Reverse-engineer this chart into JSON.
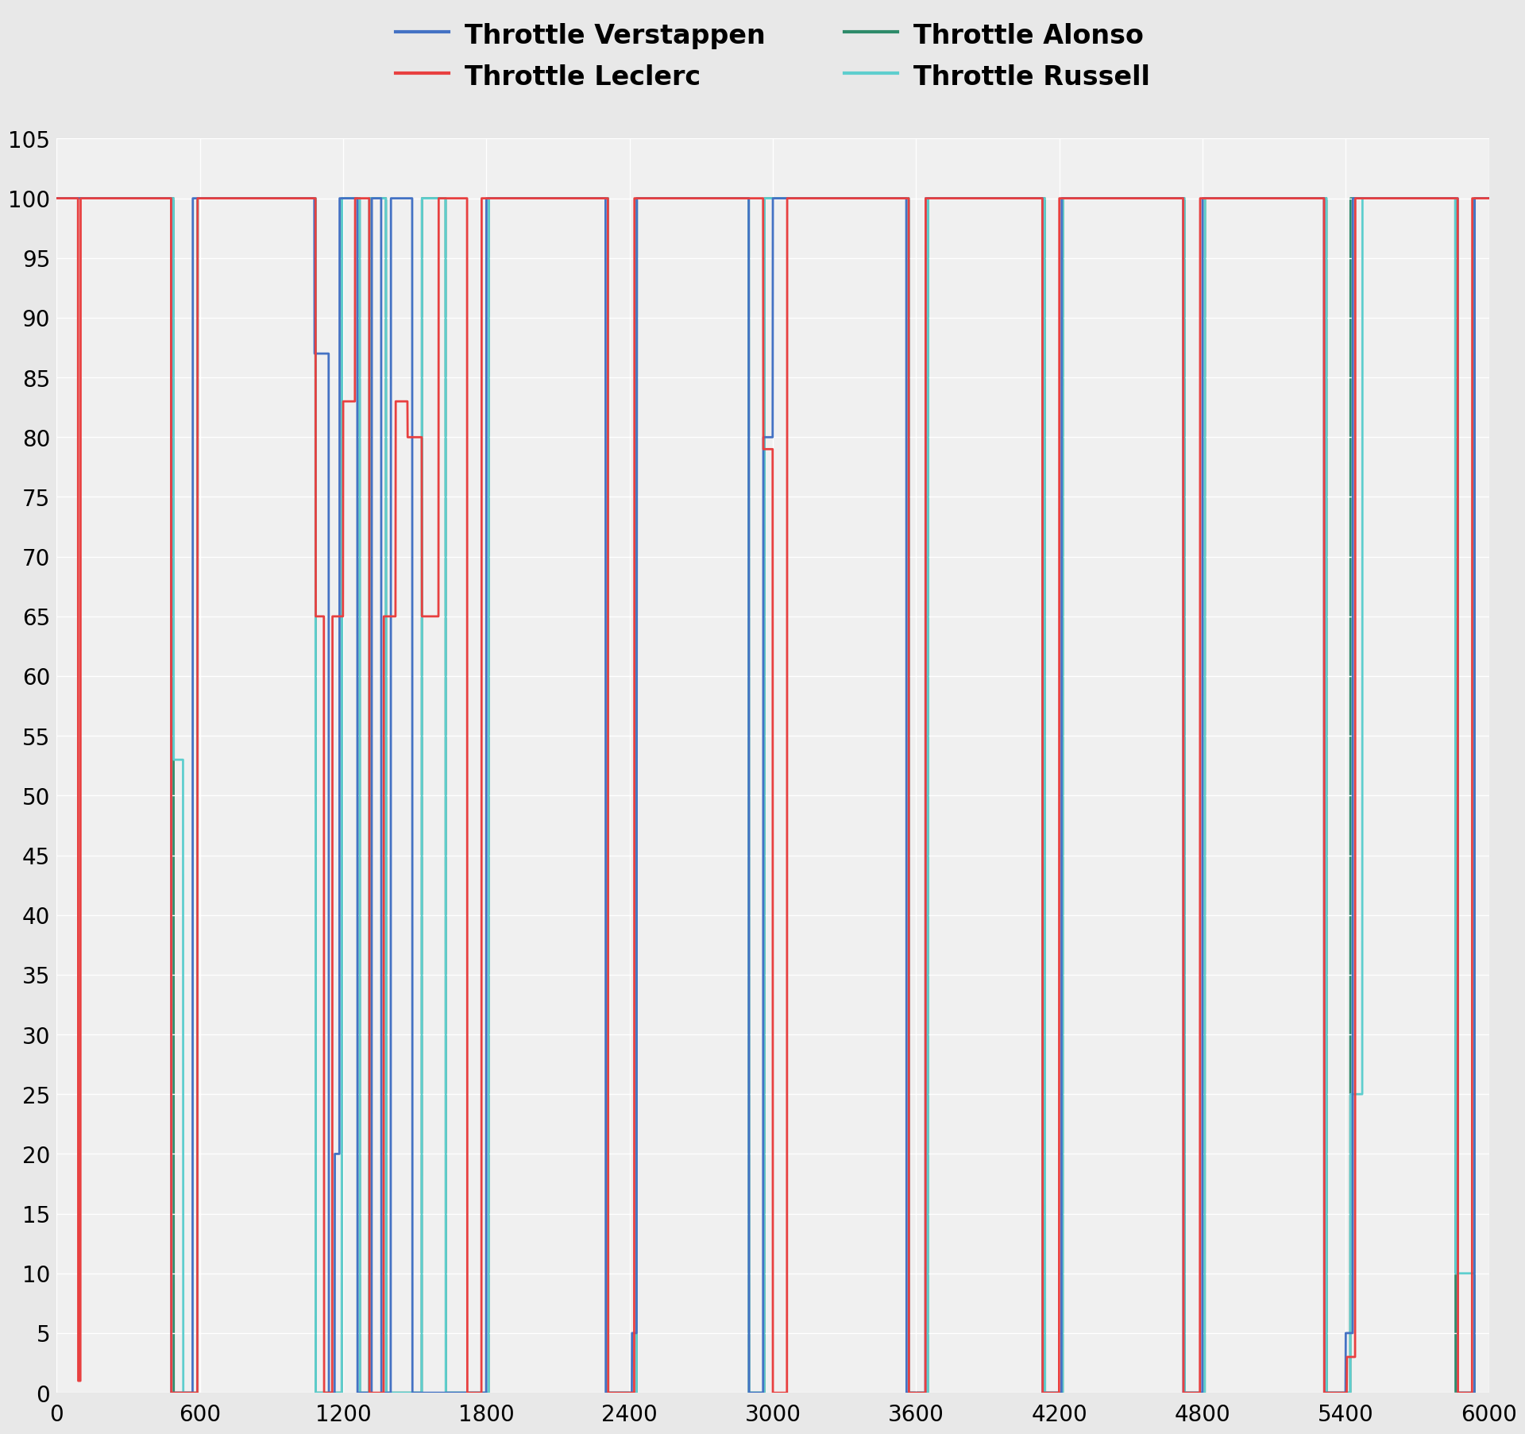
{
  "legend_entries": [
    {
      "label": "Throttle Verstappen",
      "color": "#4472C4"
    },
    {
      "label": "Throttle Leclerc",
      "color": "#E84040"
    },
    {
      "label": "Throttle Alonso",
      "color": "#2E8B6A"
    },
    {
      "label": "Throttle Russell",
      "color": "#5ECECE"
    }
  ],
  "xlim": [
    0,
    6000
  ],
  "ylim": [
    0,
    105
  ],
  "yticks": [
    0,
    5,
    10,
    15,
    20,
    25,
    30,
    35,
    40,
    45,
    50,
    55,
    60,
    65,
    70,
    75,
    80,
    85,
    90,
    95,
    100,
    105
  ],
  "xticks": [
    0,
    600,
    1200,
    1800,
    2400,
    3000,
    3600,
    4200,
    4800,
    5400,
    6000
  ],
  "background_color": "#E8E8E8",
  "plot_background": "#F0F0F0",
  "grid_color": "#FFFFFF",
  "linewidth": 2.0
}
